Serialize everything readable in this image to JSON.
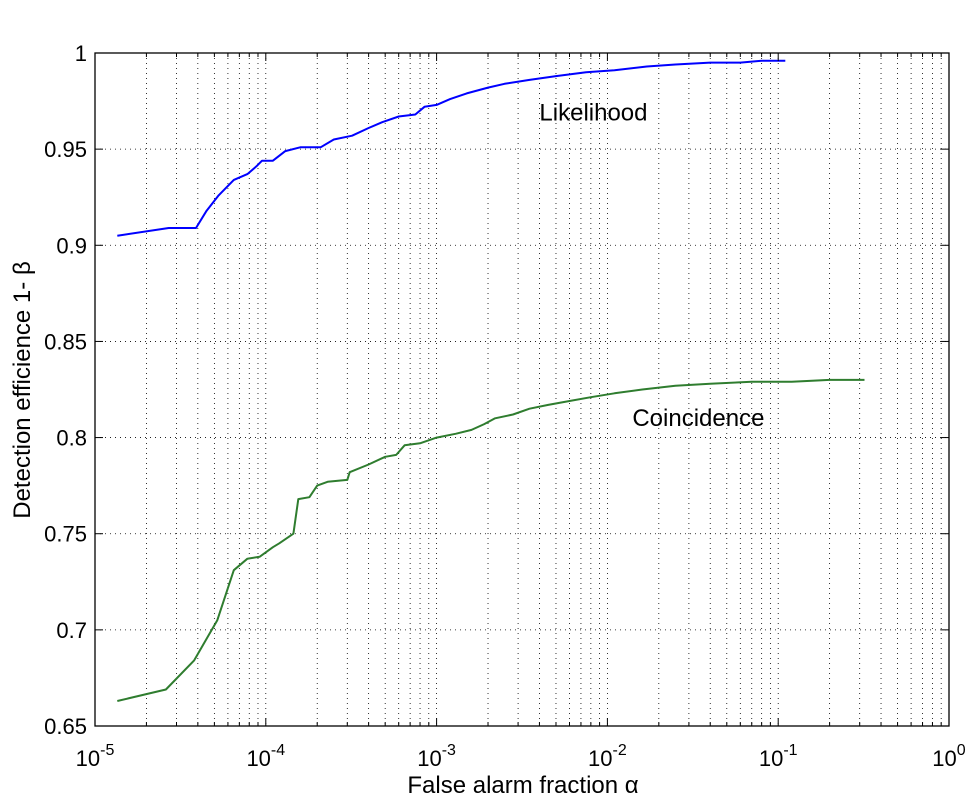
{
  "chart_data": {
    "type": "line",
    "title": "",
    "xlabel": "False alarm fraction α",
    "ylabel": "Detection efficience 1- β",
    "xscale": "log",
    "xlim": [
      1e-05,
      1
    ],
    "ylim": [
      0.65,
      1
    ],
    "grid": true,
    "grid_style": "dotted",
    "x_ticks": [
      {
        "base": "10",
        "exp": "-5",
        "value": 1e-05
      },
      {
        "base": "10",
        "exp": "-4",
        "value": 0.0001
      },
      {
        "base": "10",
        "exp": "-3",
        "value": 0.001
      },
      {
        "base": "10",
        "exp": "-2",
        "value": 0.01
      },
      {
        "base": "10",
        "exp": "-1",
        "value": 0.1
      },
      {
        "base": "10",
        "exp": "0",
        "value": 1
      }
    ],
    "y_ticks": [
      "0.65",
      "0.7",
      "0.75",
      "0.8",
      "0.85",
      "0.9",
      "0.95",
      "1"
    ],
    "annotations": [
      {
        "text": "Likelihood",
        "x": 0.004,
        "y": 0.965
      },
      {
        "text": "Coincidence",
        "x": 0.014,
        "y": 0.806
      }
    ],
    "series": [
      {
        "color": "#0000ff",
        "x": [
          1.35e-05,
          2.7e-05,
          3.9e-05,
          4.5e-05,
          5.3e-05,
          6.5e-05,
          7.8e-05,
          8.8e-05,
          9.5e-05,
          0.00011,
          0.00013,
          0.00016,
          0.00021,
          0.00025,
          0.00032,
          0.0004,
          0.00048,
          0.0006,
          0.00075,
          0.00085,
          0.001,
          0.0012,
          0.0015,
          0.002,
          0.0025,
          0.0035,
          0.005,
          0.0075,
          0.011,
          0.017,
          0.025,
          0.04,
          0.06,
          0.08,
          0.11
        ],
        "y": [
          0.905,
          0.909,
          0.909,
          0.918,
          0.926,
          0.934,
          0.937,
          0.941,
          0.944,
          0.944,
          0.949,
          0.951,
          0.951,
          0.955,
          0.957,
          0.961,
          0.964,
          0.967,
          0.968,
          0.972,
          0.973,
          0.976,
          0.979,
          0.982,
          0.984,
          0.986,
          0.988,
          0.99,
          0.991,
          0.993,
          0.994,
          0.995,
          0.995,
          0.996,
          0.996
        ]
      },
      {
        "color": "#2f7d2f",
        "x": [
          1.35e-05,
          2.6e-05,
          3.8e-05,
          5.2e-05,
          6.5e-05,
          7.8e-05,
          9.2e-05,
          0.00011,
          0.00012,
          0.000145,
          0.000155,
          0.00018,
          0.0002,
          0.00023,
          0.0003,
          0.00031,
          0.0004,
          0.0005,
          0.00058,
          0.00065,
          0.0008,
          0.001,
          0.0013,
          0.0016,
          0.0019,
          0.0022,
          0.0028,
          0.0035,
          0.0045,
          0.006,
          0.008,
          0.011,
          0.016,
          0.025,
          0.04,
          0.07,
          0.12,
          0.2,
          0.32
        ],
        "y": [
          0.663,
          0.669,
          0.684,
          0.705,
          0.731,
          0.737,
          0.738,
          0.743,
          0.745,
          0.75,
          0.768,
          0.769,
          0.775,
          0.777,
          0.778,
          0.782,
          0.786,
          0.79,
          0.791,
          0.796,
          0.797,
          0.8,
          0.802,
          0.804,
          0.807,
          0.81,
          0.812,
          0.815,
          0.817,
          0.819,
          0.821,
          0.823,
          0.825,
          0.827,
          0.828,
          0.829,
          0.829,
          0.83,
          0.83
        ]
      }
    ]
  }
}
